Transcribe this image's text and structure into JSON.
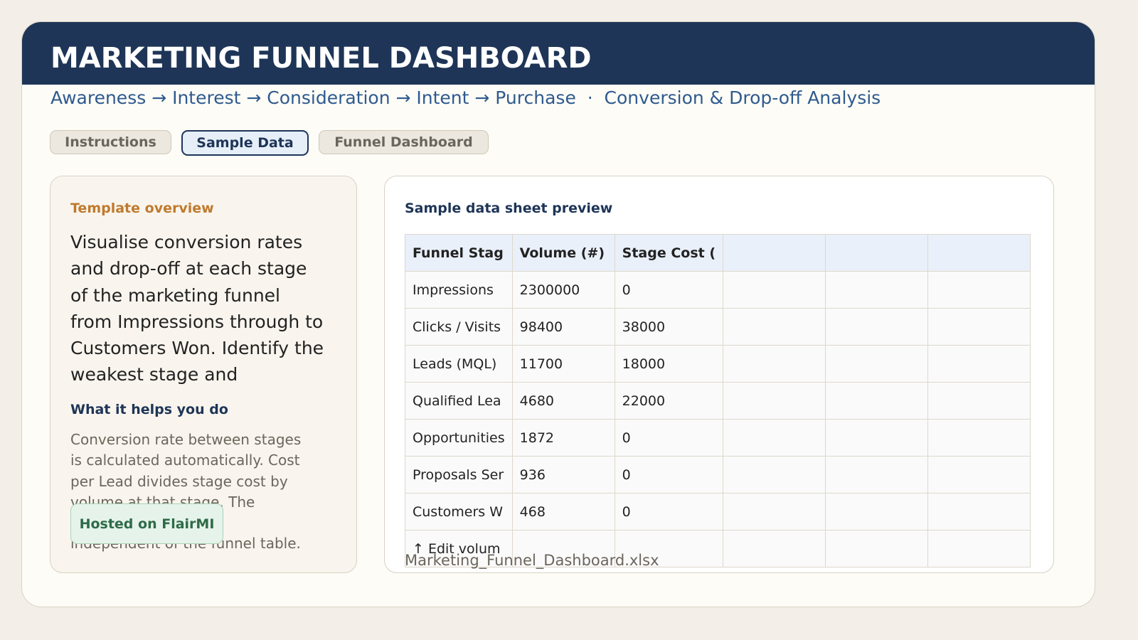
{
  "header": {
    "title": "MARKETING FUNNEL DASHBOARD",
    "subtitle": "Awareness → Interest → Consideration → Intent → Purchase  ·  Conversion & Drop-off Analysis"
  },
  "tabs": [
    {
      "label": "Instructions",
      "active": false
    },
    {
      "label": "Sample Data",
      "active": true
    },
    {
      "label": "Funnel Dashboard",
      "active": false
    }
  ],
  "overview": {
    "heading": "Template overview",
    "text": "Visualise conversion rates and drop-off at each stage of the marketing funnel from Impressions through to Customers Won. Identify the weakest stage and",
    "subheading": "What it helps you do",
    "lines": [
      "Conversion rate between stages",
      "is calculated automatically. Cost",
      "per Lead divides stage cost by",
      "volume at that stage. The",
      "independent of the funnel table."
    ]
  },
  "badge": "Hosted on FlairMI",
  "preview": {
    "heading": "Sample data sheet preview",
    "table": {
      "columns": [
        "Funnel Stag",
        "Volume (#)",
        "Stage Cost ("
      ],
      "rows": [
        [
          "Impressions",
          2300000,
          0
        ],
        [
          "Clicks / Visits",
          98400,
          38000
        ],
        [
          "Leads (MQL)",
          11700,
          18000
        ],
        [
          "Qualified Lea",
          4680,
          22000
        ],
        [
          "Opportunities",
          1872,
          0
        ],
        [
          "Proposals Ser",
          936,
          0
        ],
        [
          "Customers W",
          468,
          0
        ]
      ],
      "note": "↑ Edit volum"
    },
    "filename": "Marketing_Funnel_Dashboard.xlsx"
  }
}
